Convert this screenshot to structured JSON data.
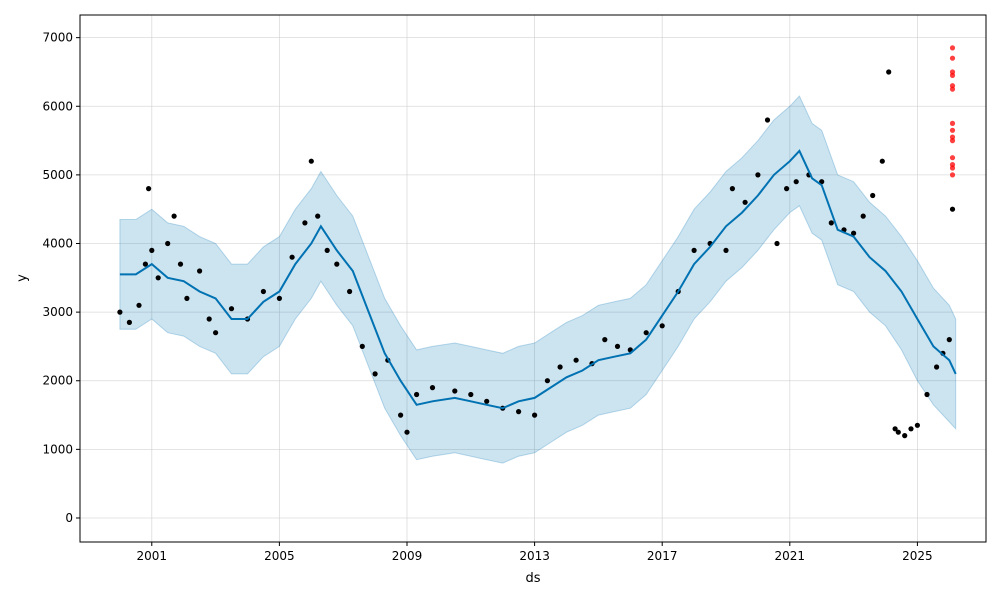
{
  "chart_data": {
    "type": "scatter",
    "title": "",
    "xlabel": "ds",
    "ylabel": "y",
    "xlim": [
      1998.75,
      2027.15
    ],
    "ylim": [
      -350,
      7330
    ],
    "grid": true,
    "x_ticks": [
      2001,
      2005,
      2009,
      2013,
      2017,
      2021,
      2025
    ],
    "x_tick_labels": [
      "2001",
      "2005",
      "2009",
      "2013",
      "2017",
      "2021",
      "2025"
    ],
    "y_ticks": [
      0,
      1000,
      2000,
      3000,
      4000,
      5000,
      6000,
      7000
    ],
    "y_tick_labels": [
      "0",
      "1000",
      "2000",
      "3000",
      "4000",
      "5000",
      "6000",
      "7000"
    ],
    "colors": {
      "observed": "#000000",
      "forecast_line": "#0072B2",
      "uncertainty_band": "#0072B2",
      "anomaly": "#ff0000",
      "grid": "#cccccc"
    },
    "series": [
      {
        "role": "observed",
        "x": [
          2000.0,
          2000.3,
          2000.6,
          2000.8,
          2000.9,
          2001.0,
          2001.2,
          2001.5,
          2001.7,
          2001.9,
          2002.1,
          2002.5,
          2002.8,
          2003.0,
          2003.5,
          2004.0,
          2004.5,
          2005.0,
          2005.4,
          2005.8,
          2006.0,
          2006.2,
          2006.5,
          2006.8,
          2007.2,
          2007.6,
          2008.0,
          2008.4,
          2008.8,
          2009.0,
          2009.3,
          2009.8,
          2010.5,
          2011.0,
          2011.5,
          2012.0,
          2012.5,
          2013.0,
          2013.4,
          2013.8,
          2014.3,
          2014.8,
          2015.2,
          2015.6,
          2016.0,
          2016.5,
          2017.0,
          2017.5,
          2018.0,
          2018.5,
          2019.0,
          2019.2,
          2019.6,
          2020.0,
          2020.3,
          2020.6,
          2020.9,
          2021.2,
          2021.6,
          2022.0,
          2022.3,
          2022.7,
          2023.0,
          2023.3,
          2023.6,
          2023.9,
          2024.1,
          2024.3,
          2024.4,
          2024.6,
          2024.8,
          2025.0,
          2025.3,
          2025.6,
          2025.8,
          2026.0,
          2026.1
        ],
        "y": [
          3000,
          2850,
          3100,
          3700,
          4800,
          3900,
          3500,
          4000,
          4400,
          3700,
          3200,
          3600,
          2900,
          2700,
          3050,
          2900,
          3300,
          3200,
          3800,
          4300,
          5200,
          4400,
          3900,
          3700,
          3300,
          2500,
          2100,
          2300,
          1500,
          1250,
          1800,
          1900,
          1850,
          1800,
          1700,
          1600,
          1550,
          1500,
          2000,
          2200,
          2300,
          2250,
          2600,
          2500,
          2450,
          2700,
          2800,
          3300,
          3900,
          4000,
          3900,
          4800,
          4600,
          5000,
          5800,
          4000,
          4800,
          4900,
          5000,
          4900,
          4300,
          4200,
          4150,
          4400,
          4700,
          5200,
          6500,
          1300,
          1250,
          1200,
          1300,
          1350,
          1800,
          2200,
          2400,
          2600,
          4500
        ]
      },
      {
        "role": "forecast",
        "x": [
          2000.0,
          2000.5,
          2001.0,
          2001.5,
          2002.0,
          2002.5,
          2003.0,
          2003.5,
          2004.0,
          2004.5,
          2005.0,
          2005.5,
          2006.0,
          2006.3,
          2006.8,
          2007.3,
          2007.8,
          2008.3,
          2008.8,
          2009.3,
          2009.8,
          2010.5,
          2011.0,
          2011.5,
          2012.0,
          2012.5,
          2013.0,
          2013.5,
          2014.0,
          2014.5,
          2015.0,
          2015.5,
          2016.0,
          2016.5,
          2017.0,
          2017.5,
          2018.0,
          2018.5,
          2019.0,
          2019.5,
          2020.0,
          2020.5,
          2021.0,
          2021.3,
          2021.7,
          2022.0,
          2022.5,
          2023.0,
          2023.5,
          2024.0,
          2024.5,
          2025.0,
          2025.5,
          2026.0,
          2026.2
        ],
        "y": [
          3550,
          3550,
          3700,
          3500,
          3450,
          3300,
          3200,
          2900,
          2900,
          3150,
          3300,
          3700,
          4000,
          4250,
          3900,
          3600,
          3000,
          2400,
          2000,
          1650,
          1700,
          1750,
          1700,
          1650,
          1600,
          1700,
          1750,
          1900,
          2050,
          2150,
          2300,
          2350,
          2400,
          2600,
          2950,
          3300,
          3700,
          3950,
          4250,
          4450,
          4700,
          5000,
          5200,
          5350,
          4950,
          4850,
          4200,
          4100,
          3800,
          3600,
          3300,
          2900,
          2500,
          2300,
          2100
        ]
      },
      {
        "role": "uncertainty",
        "x": [
          2000.0,
          2000.5,
          2001.0,
          2001.5,
          2002.0,
          2002.5,
          2003.0,
          2003.5,
          2004.0,
          2004.5,
          2005.0,
          2005.5,
          2006.0,
          2006.3,
          2006.8,
          2007.3,
          2007.8,
          2008.3,
          2008.8,
          2009.3,
          2009.8,
          2010.5,
          2011.0,
          2011.5,
          2012.0,
          2012.5,
          2013.0,
          2013.5,
          2014.0,
          2014.5,
          2015.0,
          2015.5,
          2016.0,
          2016.5,
          2017.0,
          2017.5,
          2018.0,
          2018.5,
          2019.0,
          2019.5,
          2020.0,
          2020.5,
          2021.0,
          2021.3,
          2021.7,
          2022.0,
          2022.5,
          2023.0,
          2023.5,
          2024.0,
          2024.5,
          2025.0,
          2025.5,
          2026.0,
          2026.2
        ],
        "lower": [
          2750,
          2750,
          2900,
          2700,
          2650,
          2500,
          2400,
          2100,
          2100,
          2350,
          2500,
          2900,
          3200,
          3450,
          3100,
          2800,
          2200,
          1600,
          1200,
          850,
          900,
          950,
          900,
          850,
          800,
          900,
          950,
          1100,
          1250,
          1350,
          1500,
          1550,
          1600,
          1800,
          2150,
          2500,
          2900,
          3150,
          3450,
          3650,
          3900,
          4200,
          4450,
          4550,
          4150,
          4050,
          3400,
          3300,
          3000,
          2800,
          2450,
          2000,
          1650,
          1400,
          1300
        ],
        "upper": [
          4350,
          4350,
          4500,
          4300,
          4250,
          4100,
          4000,
          3700,
          3700,
          3950,
          4100,
          4500,
          4800,
          5050,
          4700,
          4400,
          3800,
          3200,
          2800,
          2450,
          2500,
          2550,
          2500,
          2450,
          2400,
          2500,
          2550,
          2700,
          2850,
          2950,
          3100,
          3150,
          3200,
          3400,
          3750,
          4100,
          4500,
          4750,
          5050,
          5250,
          5500,
          5800,
          6000,
          6150,
          5750,
          5650,
          5000,
          4900,
          4600,
          4400,
          4100,
          3750,
          3350,
          3100,
          2900
        ]
      },
      {
        "role": "anomaly",
        "x": [
          2026.1,
          2026.1,
          2026.1,
          2026.1,
          2026.1,
          2026.1,
          2026.1,
          2026.1,
          2026.1,
          2026.1,
          2026.1,
          2026.1,
          2026.1,
          2026.1
        ],
        "y": [
          6850,
          6700,
          6500,
          6450,
          6300,
          6250,
          5750,
          5650,
          5550,
          5500,
          5250,
          5150,
          5100,
          5000
        ]
      }
    ]
  }
}
